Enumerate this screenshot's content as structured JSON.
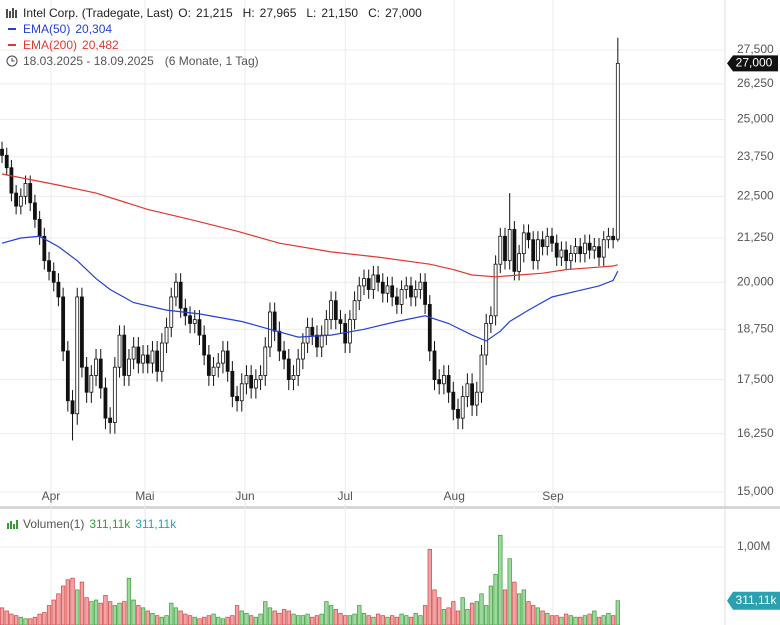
{
  "header": {
    "title": "Intel Corp. (Tradegate, Last)",
    "ohlc": [
      {
        "label": "O:",
        "value": "21,215"
      },
      {
        "label": "H:",
        "value": "27,965"
      },
      {
        "label": "L:",
        "value": "21,150"
      },
      {
        "label": "C:",
        "value": "27,000"
      }
    ],
    "range": "18.03.2025 - 18.09.2025",
    "range_note": "(6 Monate, 1 Tag)"
  },
  "chart_data": [
    {
      "type": "candlestick",
      "log_scale": true,
      "grid": true,
      "up_color": "#ffffff",
      "down_color": "#111111",
      "last_label": "27,000",
      "open": [
        24000,
        23800,
        23400,
        22600,
        22200,
        22500,
        22900,
        22300,
        21800,
        21300,
        20600,
        20300,
        20000,
        19600,
        18200,
        17000,
        16700,
        19600,
        17800,
        17200,
        17600,
        18000,
        17300,
        16600,
        16500,
        17800,
        18600,
        17600,
        18000,
        18300,
        17900,
        18100,
        17900,
        18200,
        17700,
        18400,
        18800,
        19600,
        20000,
        19300,
        19100,
        18900,
        19000,
        18600,
        18100,
        17600,
        17800,
        17900,
        18200,
        17700,
        17100,
        17000,
        17400,
        17600,
        17300,
        17500,
        17600,
        18300,
        19200,
        18700,
        18200,
        18000,
        17500,
        17600,
        18000,
        18400,
        18800,
        18600,
        18300,
        18600,
        19000,
        19500,
        19000,
        18900,
        18400,
        19000,
        19500,
        19900,
        20100,
        19800,
        20200,
        20000,
        19700,
        19900,
        19600,
        19400,
        19800,
        19900,
        19600,
        19800,
        20000,
        19400,
        18200,
        17500,
        17400,
        17600,
        17200,
        16800,
        16600,
        17100,
        17400,
        16900,
        17200,
        18100,
        18900,
        19100,
        20500,
        21300,
        20600,
        21500,
        20300,
        20800,
        21400,
        21200,
        20600,
        21200,
        21000,
        21300,
        21100,
        20700,
        20900,
        20600,
        20800,
        21000,
        20800,
        21100,
        20900,
        21000,
        20700,
        21200,
        21300,
        21215
      ],
      "high": [
        24250,
        24050,
        23650,
        22850,
        22750,
        23150,
        23150,
        22550,
        22050,
        21550,
        20850,
        20550,
        20250,
        19850,
        18450,
        17250,
        19850,
        19850,
        18050,
        17850,
        18250,
        18250,
        17550,
        16850,
        18050,
        18850,
        18850,
        18250,
        18550,
        18550,
        18350,
        18350,
        18450,
        18450,
        18650,
        19050,
        19850,
        20250,
        20250,
        19550,
        19350,
        19250,
        19250,
        18850,
        18350,
        18050,
        18150,
        18450,
        18450,
        17950,
        17350,
        17650,
        17850,
        17850,
        17750,
        17850,
        18550,
        19450,
        19450,
        18950,
        18450,
        18250,
        17850,
        18250,
        18650,
        19050,
        19050,
        18850,
        18850,
        19250,
        19750,
        19750,
        19250,
        19150,
        19250,
        19750,
        20150,
        20350,
        20350,
        20450,
        20450,
        20250,
        20150,
        20150,
        19850,
        20050,
        20150,
        20150,
        20050,
        20250,
        20250,
        19650,
        18450,
        17750,
        17850,
        17850,
        17450,
        17050,
        17350,
        17650,
        17650,
        17450,
        18350,
        19150,
        19350,
        20750,
        21550,
        21550,
        22600,
        21750,
        21050,
        21650,
        21650,
        21450,
        21450,
        21450,
        21550,
        21550,
        21350,
        21150,
        21150,
        21050,
        21250,
        21250,
        21350,
        21350,
        21250,
        21250,
        21450,
        21550,
        21550,
        27965
      ],
      "low": [
        23550,
        23150,
        22350,
        21950,
        21950,
        22250,
        22050,
        21550,
        21050,
        20350,
        20050,
        19750,
        19350,
        17950,
        16750,
        16100,
        16450,
        17550,
        16950,
        16950,
        17350,
        17050,
        16350,
        16250,
        16250,
        17550,
        17350,
        17350,
        17750,
        17650,
        17650,
        17650,
        17650,
        17450,
        17450,
        18150,
        18550,
        19350,
        19050,
        18850,
        18650,
        18650,
        18350,
        17850,
        17350,
        17350,
        17550,
        17650,
        17450,
        16850,
        16750,
        16750,
        17150,
        17050,
        17050,
        17250,
        17350,
        18050,
        18450,
        17950,
        17750,
        17250,
        17250,
        17350,
        17750,
        18150,
        18350,
        18050,
        18050,
        18350,
        18750,
        18750,
        18650,
        18150,
        18150,
        18750,
        19250,
        19650,
        19550,
        19550,
        19750,
        19450,
        19450,
        19350,
        19150,
        19150,
        19550,
        19350,
        19350,
        19550,
        19150,
        17950,
        17250,
        17150,
        17150,
        16950,
        16550,
        16350,
        16350,
        16850,
        16650,
        16650,
        16950,
        17850,
        18650,
        18850,
        20250,
        20350,
        20350,
        20050,
        20050,
        20550,
        20950,
        20350,
        20350,
        20750,
        20750,
        20850,
        20450,
        20450,
        20350,
        20350,
        20550,
        20550,
        20550,
        20650,
        20650,
        20450,
        20450,
        20950,
        20950,
        21150
      ],
      "close": [
        23800,
        23400,
        22600,
        22200,
        22500,
        22900,
        22300,
        21800,
        21300,
        20600,
        20300,
        20000,
        19600,
        18200,
        17000,
        16700,
        19600,
        17800,
        17200,
        17600,
        18000,
        17300,
        16600,
        16500,
        17800,
        18600,
        17600,
        18000,
        18300,
        17900,
        18100,
        17900,
        18200,
        17700,
        18400,
        18800,
        19600,
        20000,
        19300,
        19100,
        18900,
        19000,
        18600,
        18100,
        17600,
        17800,
        17900,
        18200,
        17700,
        17100,
        17000,
        17400,
        17600,
        17300,
        17500,
        17600,
        18300,
        19200,
        18700,
        18200,
        18000,
        17500,
        17600,
        18000,
        18400,
        18800,
        18600,
        18300,
        18600,
        19000,
        19500,
        19000,
        18900,
        18400,
        19000,
        19500,
        19900,
        20100,
        19800,
        20200,
        20000,
        19700,
        19900,
        19600,
        19400,
        19800,
        19900,
        19600,
        19800,
        20000,
        19400,
        18200,
        17500,
        17400,
        17600,
        17200,
        16800,
        16600,
        17100,
        17400,
        16900,
        17200,
        18100,
        18900,
        19100,
        20500,
        21300,
        20600,
        21500,
        20300,
        20800,
        21400,
        21200,
        20600,
        21200,
        21000,
        21300,
        21100,
        20700,
        20900,
        20600,
        20800,
        21000,
        20800,
        21100,
        20900,
        21000,
        20700,
        21200,
        21300,
        21200,
        27000
      ],
      "series": [
        {
          "name": "EMA(50)",
          "legend_value": "20,304",
          "color": "#2340d8",
          "x": [
            0,
            4,
            8,
            12,
            16,
            20,
            23,
            28,
            35,
            42,
            51,
            57,
            63,
            70,
            77,
            84,
            90,
            95,
            100,
            103,
            106,
            108,
            112,
            117,
            122,
            127,
            130,
            131
          ],
          "values": [
            21100,
            21250,
            21300,
            21000,
            20600,
            20100,
            19800,
            19450,
            19250,
            19150,
            18950,
            18750,
            18550,
            18600,
            18750,
            18950,
            19100,
            18900,
            18600,
            18450,
            18700,
            18950,
            19250,
            19600,
            19750,
            19900,
            20050,
            20304
          ]
        },
        {
          "name": "EMA(200)",
          "legend_value": "20,482",
          "color": "#e0392b",
          "x": [
            0,
            12,
            20,
            31,
            40,
            50,
            59,
            70,
            80,
            91,
            96,
            100,
            105,
            110,
            115,
            120,
            125,
            130,
            131
          ],
          "values": [
            23200,
            22850,
            22600,
            22100,
            21800,
            21450,
            21100,
            20850,
            20700,
            20500,
            20350,
            20200,
            20150,
            20200,
            20250,
            20350,
            20400,
            20450,
            20482
          ]
        }
      ],
      "xlim": [
        -0.43,
        153.8
      ],
      "xticks": [
        {
          "value": 10.4,
          "label": "Apr"
        },
        {
          "value": 30.4,
          "label": "Mai"
        },
        {
          "value": 51.7,
          "label": "Jun"
        },
        {
          "value": 73,
          "label": "Jul"
        },
        {
          "value": 96.2,
          "label": "Aug"
        },
        {
          "value": 117.2,
          "label": "Sep"
        }
      ],
      "ylim": [
        14980,
        29450
      ],
      "yticks": [
        {
          "value": 15000,
          "label": "15,000"
        },
        {
          "value": 16250,
          "label": "16,250"
        },
        {
          "value": 17500,
          "label": "17,500"
        },
        {
          "value": 18750,
          "label": "18,750"
        },
        {
          "value": 20000,
          "label": "20,000"
        },
        {
          "value": 21250,
          "label": "21,250"
        },
        {
          "value": 22500,
          "label": "22,500"
        },
        {
          "value": 23750,
          "label": "23,750"
        },
        {
          "value": 25000,
          "label": "25,000"
        },
        {
          "value": 26250,
          "label": "26,250"
        },
        {
          "value": 27500,
          "label": "27,500"
        }
      ]
    },
    {
      "type": "bar",
      "name": "Volumen(1)",
      "legend_values": [
        "311,11k",
        "311,11k"
      ],
      "last_label": "311,11k",
      "up_color": "#9fd89f",
      "down_color": "#f3a3a3",
      "values": [
        0.22,
        0.18,
        0.14,
        0.12,
        0.1,
        0.08,
        0.08,
        0.1,
        0.14,
        0.16,
        0.25,
        0.32,
        0.4,
        0.5,
        0.58,
        0.6,
        0.45,
        0.55,
        0.35,
        0.3,
        0.32,
        0.28,
        0.38,
        0.3,
        0.25,
        0.28,
        0.3,
        0.6,
        0.32,
        0.25,
        0.22,
        0.18,
        0.15,
        0.12,
        0.1,
        0.12,
        0.28,
        0.22,
        0.18,
        0.14,
        0.12,
        0.1,
        0.08,
        0.1,
        0.12,
        0.14,
        0.1,
        0.08,
        0.1,
        0.12,
        0.25,
        0.18,
        0.15,
        0.12,
        0.1,
        0.14,
        0.3,
        0.22,
        0.18,
        0.15,
        0.2,
        0.18,
        0.14,
        0.12,
        0.12,
        0.14,
        0.1,
        0.12,
        0.14,
        0.3,
        0.25,
        0.2,
        0.15,
        0.12,
        0.12,
        0.14,
        0.25,
        0.15,
        0.12,
        0.1,
        0.14,
        0.12,
        0.1,
        0.12,
        0.1,
        0.14,
        0.12,
        0.1,
        0.15,
        0.12,
        0.25,
        0.97,
        0.45,
        0.35,
        0.2,
        0.22,
        0.3,
        0.18,
        0.35,
        0.2,
        0.28,
        0.3,
        0.4,
        0.25,
        0.5,
        0.65,
        1.15,
        0.45,
        0.85,
        0.55,
        0.4,
        0.45,
        0.3,
        0.25,
        0.22,
        0.18,
        0.15,
        0.12,
        0.12,
        0.1,
        0.14,
        0.12,
        0.1,
        0.1,
        0.12,
        0.14,
        0.18,
        0.1,
        0.12,
        0.15,
        0.12,
        0.31111
      ],
      "ylim": [
        0,
        1.474
      ],
      "yticks": [
        {
          "value": 1,
          "label": "1,00M"
        }
      ]
    }
  ]
}
